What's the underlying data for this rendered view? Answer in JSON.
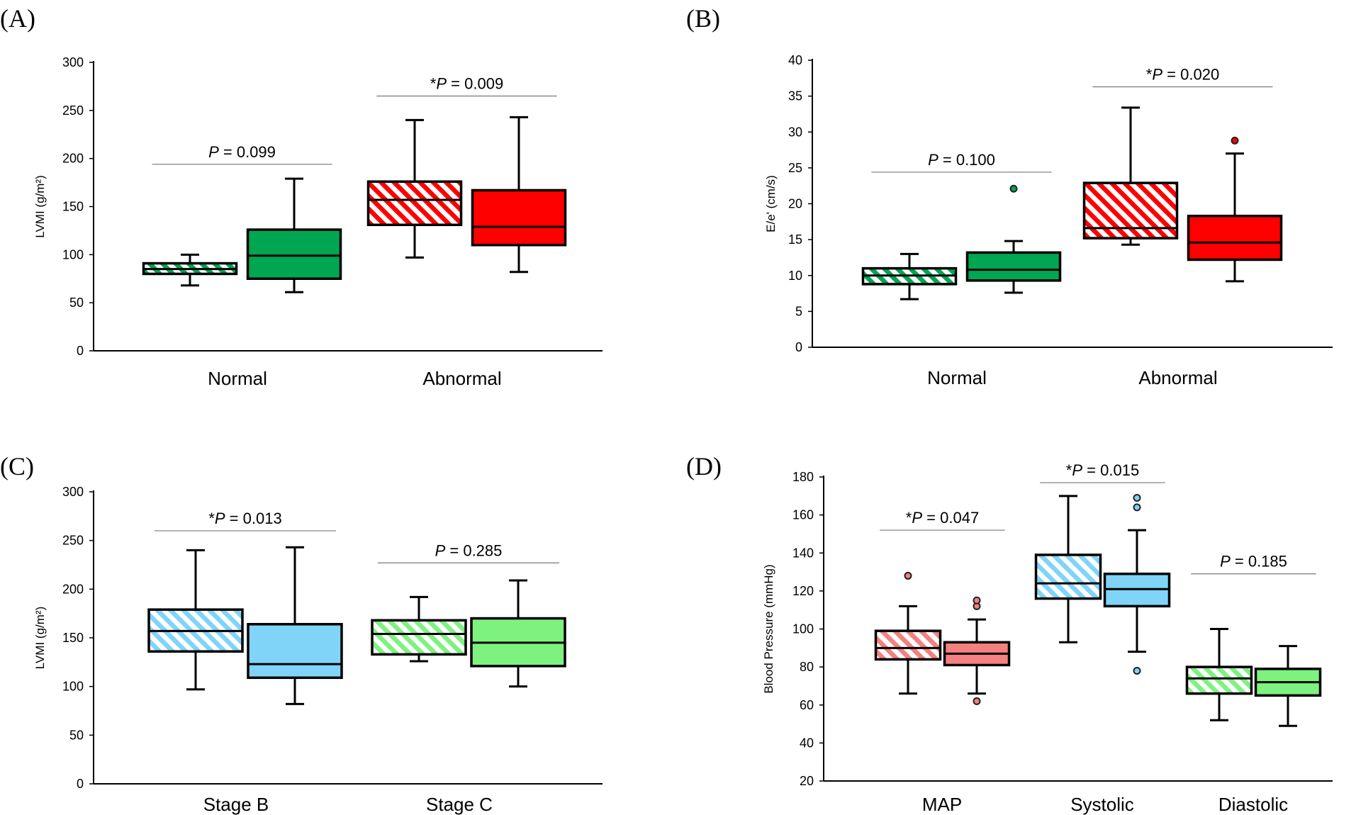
{
  "figure": {
    "panels": [
      {
        "id": "A",
        "letter": "(A)",
        "ylabel": "LVMI (g/m²)",
        "ylim": [
          0,
          300
        ],
        "yticks": [
          0,
          50,
          100,
          150,
          200,
          250,
          300
        ],
        "categories": [
          "Normal",
          "Abnormal"
        ]
      },
      {
        "id": "B",
        "letter": "(B)",
        "ylabel": "E/e' (cm/s)",
        "ylim": [
          0,
          40
        ],
        "yticks": [
          0,
          5,
          10,
          15,
          20,
          25,
          30,
          35,
          40
        ],
        "categories": [
          "Normal",
          "Abnormal"
        ]
      },
      {
        "id": "C",
        "letter": "(C)",
        "ylabel": "LVMI (g/m²)",
        "ylim": [
          0,
          300
        ],
        "yticks": [
          0,
          50,
          100,
          150,
          200,
          250,
          300
        ],
        "categories": [
          "Stage B",
          "Stage C"
        ]
      },
      {
        "id": "D",
        "letter": "(D)",
        "ylabel": "Blood Pressure (mmHg)",
        "ylim": [
          20,
          180
        ],
        "yticks": [
          20,
          40,
          60,
          80,
          100,
          120,
          140,
          160,
          180
        ],
        "categories": [
          "MAP",
          "Systolic",
          "Diastolic"
        ]
      }
    ]
  },
  "chart_data": [
    {
      "type": "boxplot",
      "panel": "A",
      "ylabel": "LVMI (g/m²)",
      "ylim": [
        0,
        300
      ],
      "categories": [
        "Normal",
        "Abnormal"
      ],
      "boxes": [
        {
          "category": "Normal",
          "slot": 0,
          "pattern": "hatched",
          "color": "#00A651",
          "whisker_low": 68,
          "q1": 80,
          "median": 85,
          "q3": 91,
          "whisker_high": 100,
          "outliers": []
        },
        {
          "category": "Normal",
          "slot": 1,
          "pattern": "solid",
          "color": "#00A651",
          "whisker_low": 61,
          "q1": 75,
          "median": 99,
          "q3": 126,
          "whisker_high": 179,
          "outliers": []
        },
        {
          "category": "Abnormal",
          "slot": 0,
          "pattern": "hatched",
          "color": "#FF0000",
          "whisker_low": 97,
          "q1": 131,
          "median": 157,
          "q3": 176,
          "whisker_high": 240,
          "outliers": []
        },
        {
          "category": "Abnormal",
          "slot": 1,
          "pattern": "solid",
          "color": "#FF0000",
          "whisker_low": 82,
          "q1": 110,
          "median": 129,
          "q3": 167,
          "whisker_high": 243,
          "outliers": []
        }
      ],
      "annotations": [
        {
          "category": "Normal",
          "star": "",
          "p_label": "P",
          "p_value": " = 0.099",
          "y": 194
        },
        {
          "category": "Abnormal",
          "star": "*",
          "p_label": "P",
          "p_value": " = 0.009",
          "y": 265
        }
      ]
    },
    {
      "type": "boxplot",
      "panel": "B",
      "ylabel": "E/e' (cm/s)",
      "ylim": [
        0,
        40
      ],
      "categories": [
        "Normal",
        "Abnormal"
      ],
      "boxes": [
        {
          "category": "Normal",
          "slot": 0,
          "pattern": "hatched",
          "color": "#00A651",
          "whisker_low": 6.7,
          "q1": 8.8,
          "median": 10,
          "q3": 11,
          "whisker_high": 13,
          "outliers": []
        },
        {
          "category": "Normal",
          "slot": 1,
          "pattern": "solid",
          "color": "#00A651",
          "whisker_low": 7.6,
          "q1": 9.3,
          "median": 10.8,
          "q3": 13.2,
          "whisker_high": 14.8,
          "outliers": [
            22.1
          ]
        },
        {
          "category": "Abnormal",
          "slot": 0,
          "pattern": "hatched",
          "color": "#FF0000",
          "whisker_low": 14.3,
          "q1": 15.2,
          "median": 16.6,
          "q3": 22.9,
          "whisker_high": 33.4,
          "outliers": []
        },
        {
          "category": "Abnormal",
          "slot": 1,
          "pattern": "solid",
          "color": "#FF0000",
          "whisker_low": 9.2,
          "q1": 12.2,
          "median": 14.6,
          "q3": 18.3,
          "whisker_high": 27,
          "outliers": [
            28.8
          ]
        }
      ],
      "annotations": [
        {
          "category": "Normal",
          "star": "",
          "p_label": "P",
          "p_value": " = 0.100",
          "y": 24.4
        },
        {
          "category": "Abnormal",
          "star": "*",
          "p_label": "P",
          "p_value": " = 0.020",
          "y": 36.3
        }
      ]
    },
    {
      "type": "boxplot",
      "panel": "C",
      "ylabel": "LVMI (g/m²)",
      "ylim": [
        0,
        300
      ],
      "categories": [
        "Stage B",
        "Stage C"
      ],
      "boxes": [
        {
          "category": "Stage B",
          "slot": 0,
          "pattern": "hatched",
          "color": "#7FD4F8",
          "whisker_low": 97,
          "q1": 136,
          "median": 157,
          "q3": 179,
          "whisker_high": 240,
          "outliers": []
        },
        {
          "category": "Stage B",
          "slot": 1,
          "pattern": "solid",
          "color": "#7FD4F8",
          "whisker_low": 82,
          "q1": 109,
          "median": 123,
          "q3": 164,
          "whisker_high": 243,
          "outliers": []
        },
        {
          "category": "Stage C",
          "slot": 0,
          "pattern": "hatched",
          "color": "#7EF27E",
          "whisker_low": 126,
          "q1": 133,
          "median": 154,
          "q3": 168,
          "whisker_high": 192,
          "outliers": []
        },
        {
          "category": "Stage C",
          "slot": 1,
          "pattern": "solid",
          "color": "#7EF27E",
          "whisker_low": 100,
          "q1": 121,
          "median": 145,
          "q3": 170,
          "whisker_high": 209,
          "outliers": []
        }
      ],
      "annotations": [
        {
          "category": "Stage B",
          "star": "*",
          "p_label": "P",
          "p_value": " = 0.013",
          "y": 260
        },
        {
          "category": "Stage C",
          "star": "",
          "p_label": "P",
          "p_value": " = 0.285",
          "y": 227
        }
      ]
    },
    {
      "type": "boxplot",
      "panel": "D",
      "ylabel": "Blood Pressure (mmHg)",
      "ylim": [
        20,
        180
      ],
      "categories": [
        "MAP",
        "Systolic",
        "Diastolic"
      ],
      "boxes": [
        {
          "category": "MAP",
          "slot": 0,
          "pattern": "hatched",
          "color": "#F58080",
          "whisker_low": 66,
          "q1": 84,
          "median": 90,
          "q3": 99,
          "whisker_high": 112,
          "outliers": [
            128
          ]
        },
        {
          "category": "MAP",
          "slot": 1,
          "pattern": "solid",
          "color": "#F58080",
          "whisker_low": 66,
          "q1": 81,
          "median": 87,
          "q3": 93,
          "whisker_high": 105,
          "outliers": [
            62,
            112,
            115
          ]
        },
        {
          "category": "Systolic",
          "slot": 0,
          "pattern": "hatched",
          "color": "#7FD4F8",
          "whisker_low": 93,
          "q1": 116,
          "median": 124,
          "q3": 139,
          "whisker_high": 170,
          "outliers": []
        },
        {
          "category": "Systolic",
          "slot": 1,
          "pattern": "solid",
          "color": "#7FD4F8",
          "whisker_low": 88,
          "q1": 112,
          "median": 121,
          "q3": 129,
          "whisker_high": 152,
          "outliers": [
            78,
            164,
            169
          ]
        },
        {
          "category": "Diastolic",
          "slot": 0,
          "pattern": "hatched",
          "color": "#7EF27E",
          "whisker_low": 52,
          "q1": 66,
          "median": 74,
          "q3": 80,
          "whisker_high": 100,
          "outliers": []
        },
        {
          "category": "Diastolic",
          "slot": 1,
          "pattern": "solid",
          "color": "#7EF27E",
          "whisker_low": 49,
          "q1": 65,
          "median": 72,
          "q3": 79,
          "whisker_high": 91,
          "outliers": []
        }
      ],
      "annotations": [
        {
          "category": "MAP",
          "star": "*",
          "p_label": "P",
          "p_value": " = 0.047",
          "y": 152
        },
        {
          "category": "Systolic",
          "star": "*",
          "p_label": "P",
          "p_value": " = 0.015",
          "y": 177
        },
        {
          "category": "Diastolic",
          "star": "",
          "p_label": "P",
          "p_value": " = 0.185",
          "y": 129
        }
      ]
    }
  ]
}
